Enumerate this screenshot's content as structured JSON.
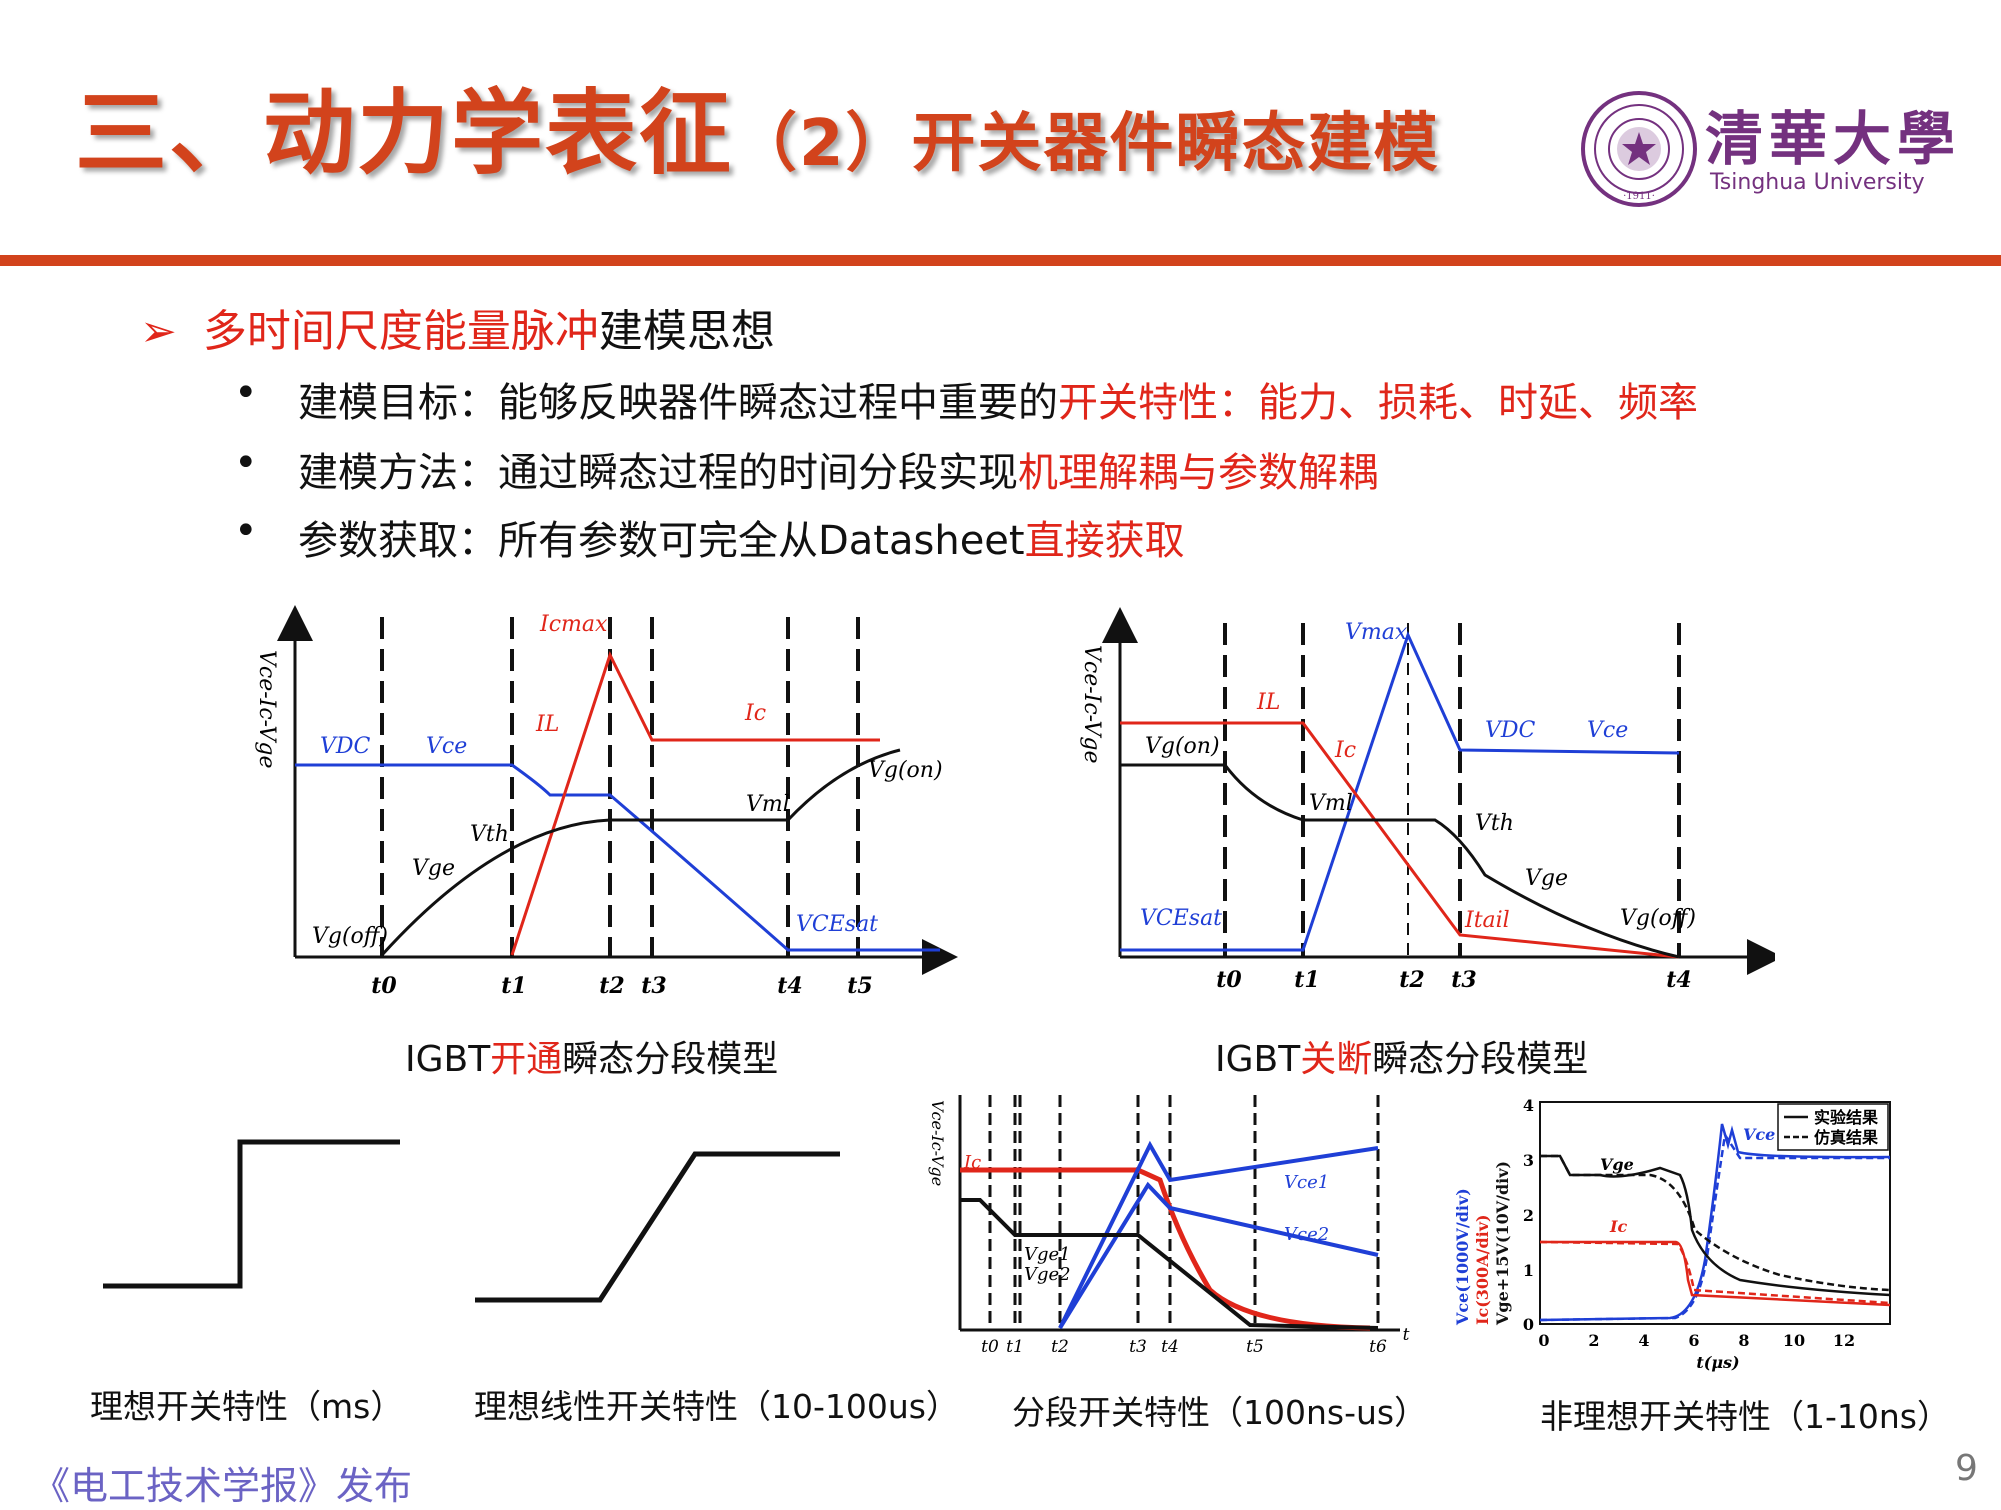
{
  "title": {
    "main": "三、动力学表征",
    "sub": "（2）开关器件瞬态建模"
  },
  "logo": {
    "cn": "清華大學",
    "en": "Tsinghua University",
    "seal_text": "·1911·"
  },
  "bullet": {
    "red": "多时间尺度能量脉冲",
    "black": "建模思想"
  },
  "items": [
    {
      "dot": "•",
      "a": "建模目标：能够反映器件瞬态过程中重要的",
      "b": "开关特性：能力、损耗、时延、频率"
    },
    {
      "dot": "•",
      "a": "建模方法：通过瞬态过程的时间分段实现",
      "b": "机理解耦与参数解耦"
    },
    {
      "dot": "•",
      "a": "参数获取：所有参数可完全从Datasheet",
      "b": "直接获取"
    }
  ],
  "chart_on": {
    "ylabel": "Vce-Ic-Vge",
    "times": [
      "t0",
      "t1",
      "t2",
      "t3",
      "t4",
      "t5"
    ],
    "labels": {
      "vdc": "VDC",
      "vce": "Vce",
      "icmax": "Icmax",
      "il": "IL",
      "ic": "Ic",
      "vth": "Vth",
      "vge": "Vge",
      "vml": "Vml",
      "vgon": "Vg(on)",
      "vgoff": "Vg(off)",
      "vcesat": "VCEsat"
    },
    "colors": {
      "vce": "#1f3fd6",
      "ic": "#e0261a",
      "vge": "#111111"
    }
  },
  "chart_off": {
    "ylabel": "Vce-Ic-Vge",
    "times": [
      "t0",
      "t1",
      "t2",
      "t3",
      "t4"
    ],
    "labels": {
      "vmax": "Vmax",
      "il": "IL",
      "ic": "Ic",
      "vdc": "VDC",
      "vce": "Vce",
      "vgon": "Vg(on)",
      "vml": "Vml",
      "vth": "Vth",
      "vge": "Vge",
      "vcesat": "VCEsat",
      "itail": "Itail",
      "vgoff": "Vg(off)"
    }
  },
  "cap_on": {
    "a": "IGBT",
    "b": "开通",
    "c": "瞬态分段模型"
  },
  "cap_off": {
    "a": "IGBT",
    "b": "关断",
    "c": "瞬态分段模型"
  },
  "panel3": {
    "ylabel": "Vce-Ic-Vge",
    "times": [
      "t0",
      "t1",
      "t2",
      "t3",
      "t4",
      "t5",
      "t6",
      "t"
    ],
    "labels": {
      "ic": "Ic",
      "vce1": "Vce1",
      "vce2": "Vce2",
      "vge1": "Vge1",
      "vge2": "Vge2"
    }
  },
  "panel4": {
    "ylabel_a": "Vce(1000V/div)",
    "ylabel_b": "Ic(300A/div)",
    "ylabel_c": "Vge+15V(10V/div)",
    "xlabel": "t(μs)",
    "xticks": [
      "0",
      "2",
      "4",
      "6",
      "8",
      "10",
      "12"
    ],
    "yticks": [
      "0",
      "1",
      "2",
      "3",
      "4"
    ],
    "legend": [
      "实验结果",
      "仿真结果"
    ],
    "labels": {
      "vce": "Vce",
      "vge": "Vge",
      "ic": "Ic"
    }
  },
  "captions": [
    "理想开关特性（ms）",
    "理想线性开关特性（10-100us）",
    "分段开关特性（100ns-us）",
    "非理想开关特性（1-10ns）"
  ],
  "footer": "《电工技术学报》发布",
  "page_number": "9"
}
